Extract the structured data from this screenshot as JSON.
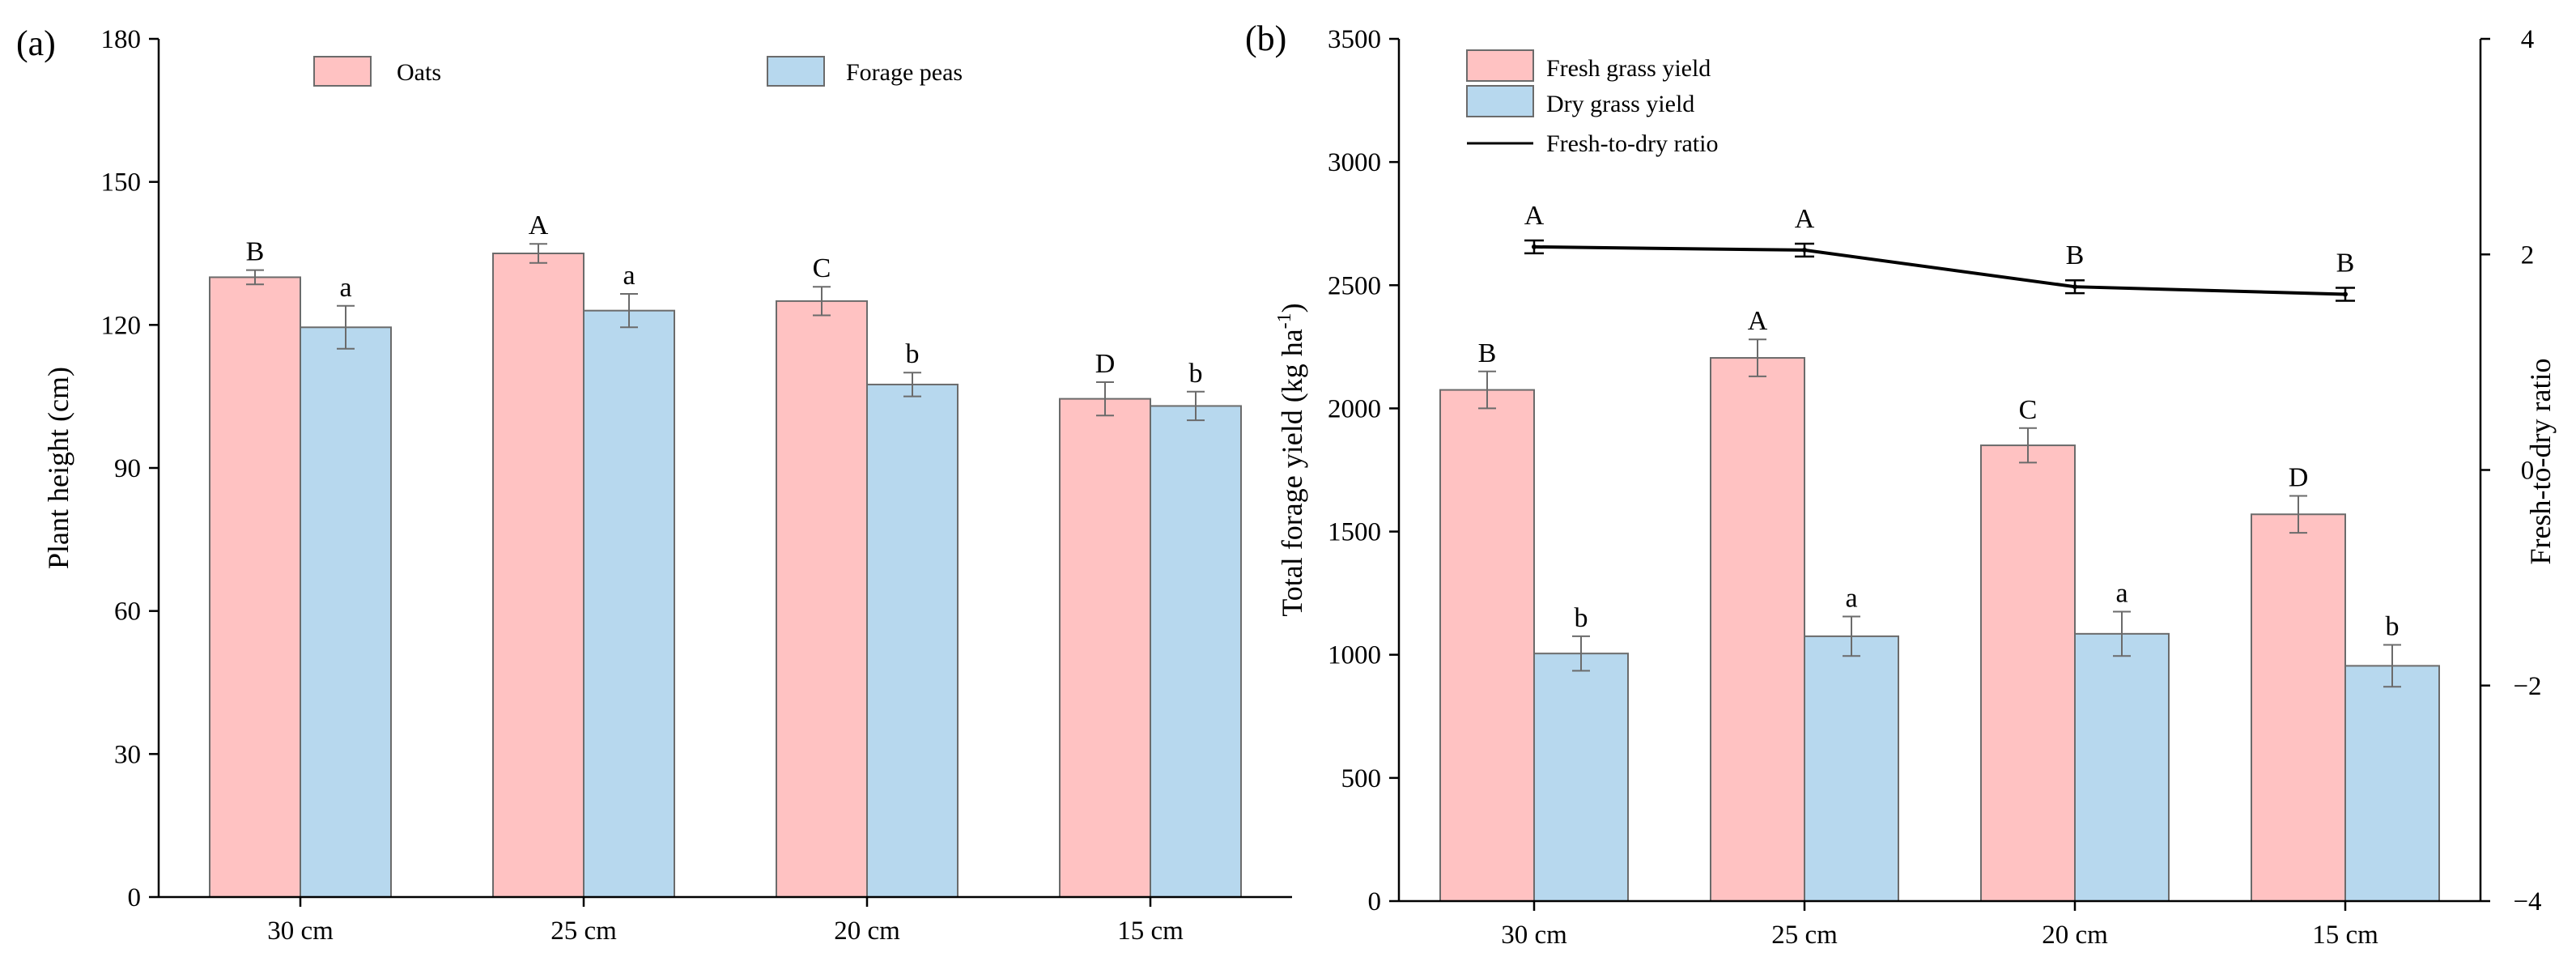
{
  "colors": {
    "pink": "#ffc2c2",
    "blue": "#b7d8ee",
    "edge": "#6b6b6b",
    "ink": "#000000"
  },
  "chart_data": [
    {
      "type": "bar",
      "panel_label": "(a)",
      "categories": [
        "30 cm",
        "25 cm",
        "20 cm",
        "15 cm"
      ],
      "ylabel": "Plant height (cm)",
      "xlabel": "",
      "ylim": [
        0,
        180
      ],
      "yticks": [
        0,
        30,
        60,
        90,
        120,
        150,
        180
      ],
      "legend": [
        "Oats",
        "Forage peas"
      ],
      "series": [
        {
          "name": "Oats",
          "color": "#ffc2c2",
          "values": [
            130,
            135,
            125,
            104.5
          ],
          "errors": [
            1.5,
            2,
            3,
            3.5
          ],
          "letters": [
            "B",
            "A",
            "C",
            "D"
          ]
        },
        {
          "name": "Forage peas",
          "color": "#b7d8ee",
          "values": [
            119.5,
            123,
            107.5,
            103
          ],
          "errors": [
            4.5,
            3.5,
            2.5,
            3
          ],
          "letters": [
            "a",
            "a",
            "b",
            "b"
          ]
        }
      ]
    },
    {
      "type": "bar",
      "panel_label": "(b)",
      "categories": [
        "30 cm",
        "25 cm",
        "20 cm",
        "15 cm"
      ],
      "ylabel_main": "Total forage yield (kg ha",
      "ylabel_exp": "-1",
      "ylabel_close": ")",
      "y2label": "Fresh-to-dry ratio",
      "xlabel": "",
      "ylim": [
        0,
        3500
      ],
      "yticks": [
        0,
        500,
        1000,
        1500,
        2000,
        2500,
        3000,
        3500
      ],
      "y2lim": [
        -4,
        4
      ],
      "y2ticks": [
        -4,
        -2,
        0,
        2,
        4
      ],
      "y2ticklabels": [
        "−4",
        "−2",
        "0",
        "2",
        "4"
      ],
      "legend": [
        "Fresh grass yield",
        "Dry grass yield",
        "Fresh-to-dry ratio"
      ],
      "series": [
        {
          "name": "Fresh grass yield",
          "color": "#ffc2c2",
          "values": [
            2075,
            2205,
            1850,
            1570
          ],
          "errors": [
            75,
            75,
            70,
            75
          ],
          "letters": [
            "B",
            "A",
            "C",
            "D"
          ]
        },
        {
          "name": "Dry grass yield",
          "color": "#b7d8ee",
          "values": [
            1005,
            1075,
            1085,
            955
          ],
          "errors": [
            70,
            80,
            90,
            85
          ],
          "letters": [
            "b",
            "a",
            "a",
            "b"
          ]
        }
      ],
      "line": {
        "name": "Fresh-to-dry ratio",
        "axis": "y2",
        "values": [
          2.07,
          2.04,
          1.7,
          1.63
        ],
        "errors": [
          0.06,
          0.06,
          0.06,
          0.06
        ],
        "letters": [
          "A",
          "A",
          "B",
          "B"
        ]
      }
    }
  ]
}
